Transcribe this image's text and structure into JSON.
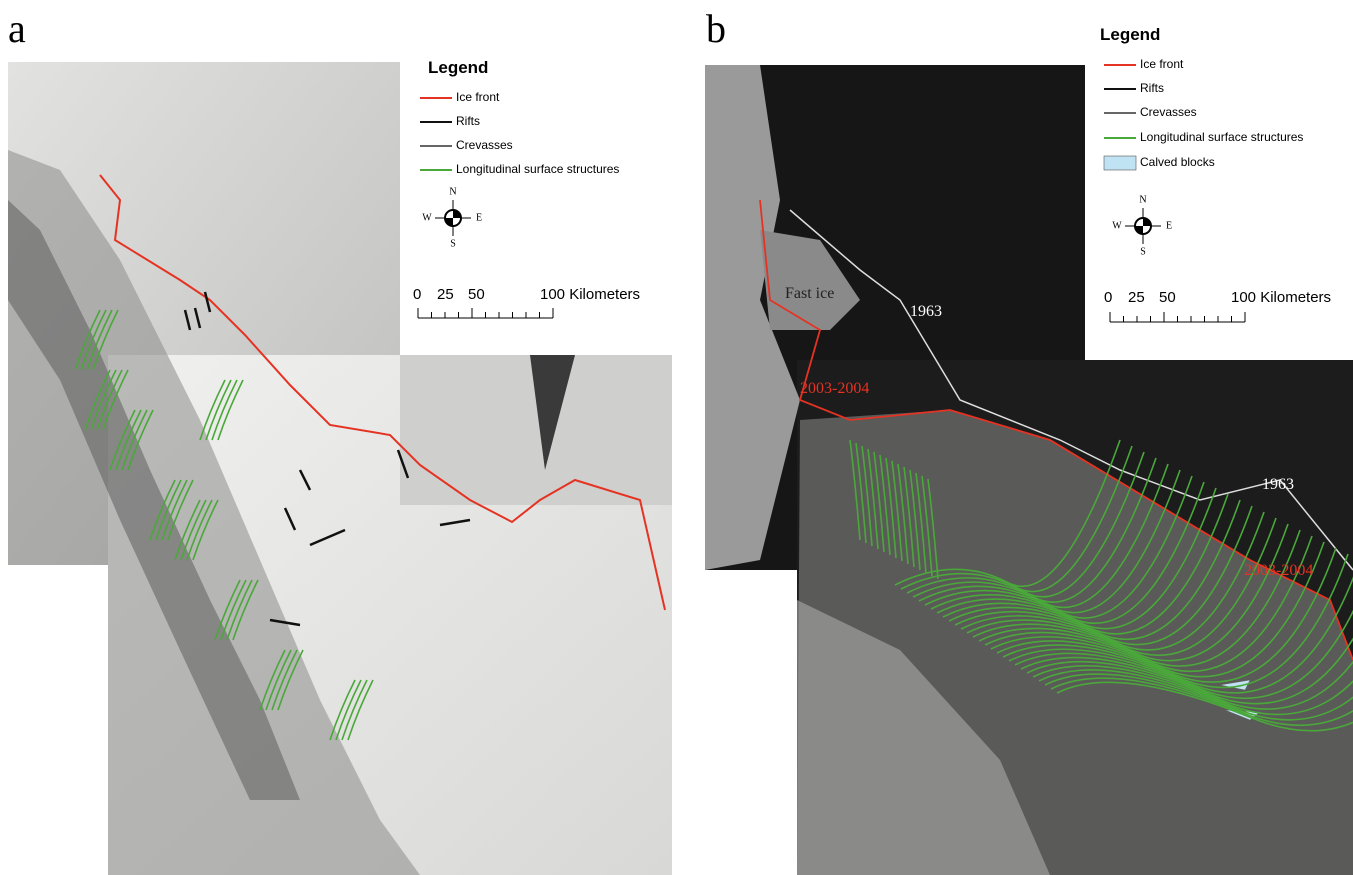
{
  "panels": [
    {
      "label": "a",
      "legend": {
        "title": "Legend",
        "items": [
          "Ice front",
          "Rifts",
          "Crevasses",
          "Longitudinal surface structures"
        ]
      },
      "compass": [
        "N",
        "W",
        "E",
        "S"
      ],
      "scale": [
        "0",
        "25",
        "50",
        "100 Kilometers"
      ]
    },
    {
      "label": "b",
      "legend": {
        "title": "Legend",
        "items": [
          "Ice front",
          "Rifts",
          "Crevasses",
          "Longitudinal surface structures",
          "Calved blocks"
        ]
      },
      "compass": [
        "N",
        "W",
        "E",
        "S"
      ],
      "scale": [
        "0",
        "25",
        "50",
        "100 Kilometers"
      ],
      "annotations": [
        "Fast ice",
        "1963",
        "2003-2004",
        "1963",
        "2003-2004"
      ]
    }
  ]
}
